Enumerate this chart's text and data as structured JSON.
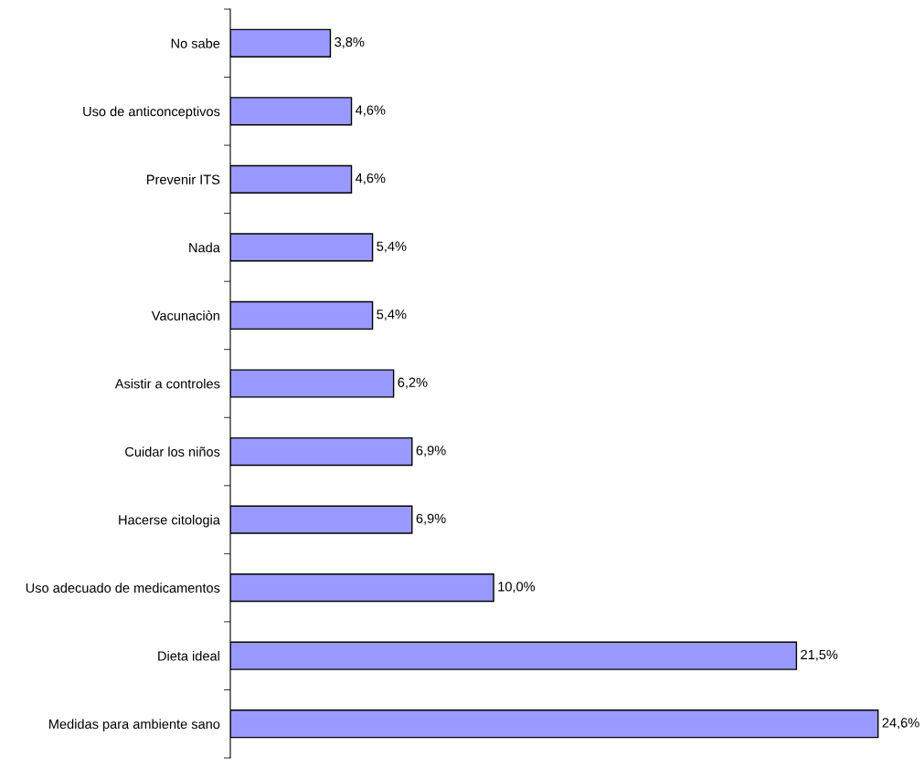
{
  "chart_data": {
    "type": "bar",
    "orientation": "horizontal",
    "categories": [
      "No sabe",
      "Uso de anticonceptivos",
      "Prevenir ITS",
      "Nada",
      "Vacunaciòn",
      "Asistir a controles",
      "Cuidar los niños",
      "Hacerse citologia",
      "Uso adecuado de medicamentos",
      "Dieta ideal",
      "Medidas para ambiente sano"
    ],
    "values": [
      3.8,
      4.6,
      4.6,
      5.4,
      5.4,
      6.2,
      6.9,
      6.9,
      10.0,
      21.5,
      24.6
    ],
    "value_labels": [
      "3,8%",
      "4,6%",
      "4,6%",
      "5,4%",
      "5,4%",
      "6,2%",
      "6,9%",
      "6,9%",
      "10,0%",
      "21,5%",
      "24,6%"
    ],
    "color": "#9999ff",
    "tick_labels": "y",
    "grid": false,
    "legend": false
  }
}
